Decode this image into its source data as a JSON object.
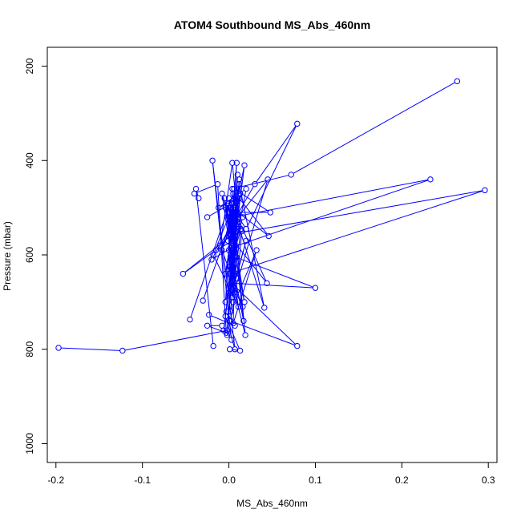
{
  "chart_data": {
    "type": "line",
    "title": "ATOM4 Southbound MS_Abs_460nm",
    "xlabel": "MS_Abs_460nm",
    "ylabel": "Pressure (mbar)",
    "xlim": [
      -0.21,
      0.31
    ],
    "ylim": [
      1040,
      160
    ],
    "y_inverted": true,
    "x_ticks": [
      -0.2,
      -0.1,
      0.0,
      0.1,
      0.2,
      0.3
    ],
    "x_tick_labels": [
      "-0.2",
      "-0.1",
      "0.0",
      "0.1",
      "0.2",
      "0.3"
    ],
    "y_ticks": [
      200,
      400,
      600,
      800,
      1000
    ],
    "y_tick_labels": [
      "200",
      "400",
      "600",
      "800",
      "1000"
    ],
    "grid": false,
    "legend": "none",
    "series_color": "#0000ff",
    "markers": "open-circle",
    "series": [
      {
        "x": [
          -0.197,
          -0.123,
          -0.002,
          0.012,
          0.004,
          0.01,
          0.002,
          -0.005,
          0.018,
          0.003,
          0.006,
          -0.018,
          0.011,
          -0.008,
          0.002,
          0.009,
          0.001,
          0.003,
          -0.004,
          0.007,
          0.046,
          0.012,
          -0.012,
          0.02,
          0.001,
          0.0,
          0.004,
          -0.025
        ],
        "y": [
          797,
          803,
          760,
          440,
          675,
          430,
          560,
          480,
          700,
          520,
          490,
          600,
          710,
          470,
          530,
          650,
          500,
          590,
          640,
          505,
          560,
          480,
          500,
          460,
          640,
          560,
          490,
          520
        ]
      },
      {
        "x": [
          -0.045,
          0.005,
          0.01,
          -0.002,
          0.008,
          0.003,
          0.016,
          -0.01,
          0.004,
          0.011,
          0.002,
          0.032,
          0.005,
          0.007,
          -0.004,
          0.002,
          0.01,
          0.048,
          0.006,
          0.004,
          0.014,
          0.001,
          0.003,
          0.02,
          0.006,
          0.079,
          0.002,
          0.005
        ],
        "y": [
          737,
          470,
          515,
          770,
          485,
          660,
          710,
          580,
          405,
          540,
          720,
          590,
          745,
          620,
          700,
          545,
          510,
          510,
          460,
          690,
          545,
          625,
          680,
          570,
          665,
          793,
          740,
          700
        ]
      },
      {
        "x": [
          -0.023,
          0.007,
          -0.003,
          0.009,
          0.002,
          0.013,
          -0.006,
          0.018,
          0.004,
          0.017,
          0.003,
          -0.001,
          0.01,
          0.015,
          0.001,
          0.008,
          0.1,
          0.004,
          0.019,
          0.006,
          -0.008,
          0.012,
          0.041,
          0.003,
          0.0,
          0.006,
          -0.002,
          0.01
        ],
        "y": [
          727,
          750,
          720,
          405,
          555,
          470,
          760,
          410,
          530,
          740,
          610,
          570,
          650,
          550,
          500,
          605,
          670,
          660,
          770,
          520,
          590,
          450,
          712,
          490,
          520,
          540,
          490,
          545
        ]
      },
      {
        "x": [
          -0.03,
          0.004,
          0.233,
          0.002,
          -0.004,
          0.009,
          0.001,
          0.006,
          0.296,
          0.0,
          0.006,
          0.016,
          0.003,
          0.01,
          0.005,
          0.002,
          0.013,
          0.004,
          0.0,
          0.008,
          0.003,
          0.007,
          0.001,
          0.01
        ],
        "y": [
          697,
          520,
          440,
          585,
          500,
          605,
          530,
          555,
          463,
          640,
          500,
          520,
          610,
          525,
          560,
          505,
          470,
          550,
          680,
          500,
          535,
          545,
          500,
          530
        ]
      },
      {
        "x": [
          0.264,
          0.072,
          0.004,
          0.007,
          0.011,
          0.02,
          0.079,
          0.03,
          -0.02,
          0.008,
          0.0,
          0.044,
          0.005,
          -0.015,
          -0.053,
          0.002,
          0.006,
          0.045,
          0.006,
          0.0
        ],
        "y": [
          232,
          430,
          460,
          540,
          520,
          545,
          322,
          450,
          610,
          580,
          480,
          660,
          570,
          590,
          640,
          560,
          680,
          440,
          530,
          590
        ]
      },
      {
        "x": [
          -0.018,
          -0.038,
          -0.035,
          -0.04,
          -0.013,
          -0.003,
          -0.025,
          -0.008,
          0.003,
          -0.019,
          0.007,
          -0.004,
          0.013,
          0.001
        ],
        "y": [
          793,
          460,
          480,
          470,
          450,
          765,
          750,
          750,
          780,
          400,
          800,
          730,
          803,
          800
        ]
      }
    ]
  }
}
